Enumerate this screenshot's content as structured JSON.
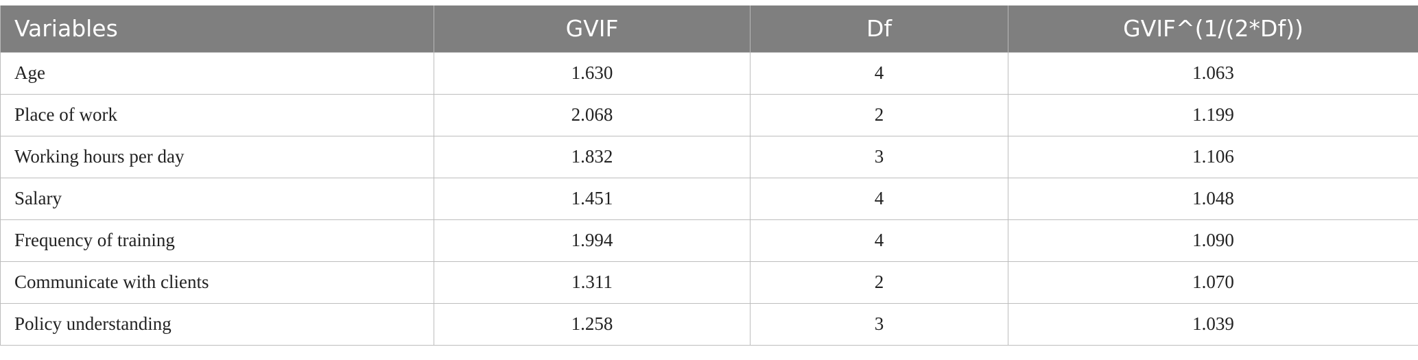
{
  "table": {
    "headers": [
      "Variables",
      "GVIF",
      "Df",
      "GVIF^(1/(2*Df))"
    ],
    "rows": [
      [
        "Age",
        "1.630",
        "4",
        "1.063"
      ],
      [
        "Place of work",
        "2.068",
        "2",
        "1.199"
      ],
      [
        "Working hours per day",
        "1.832",
        "3",
        "1.106"
      ],
      [
        "Salary",
        "1.451",
        "4",
        "1.048"
      ],
      [
        "Frequency of training",
        "1.994",
        "4",
        "1.090"
      ],
      [
        "Communicate with clients",
        "1.311",
        "2",
        "1.070"
      ],
      [
        "Policy understanding",
        "1.258",
        "3",
        "1.039"
      ]
    ]
  },
  "colors": {
    "header_background": "#7f7f7f",
    "header_text": "#ffffff",
    "border": "#bdbdbd"
  }
}
